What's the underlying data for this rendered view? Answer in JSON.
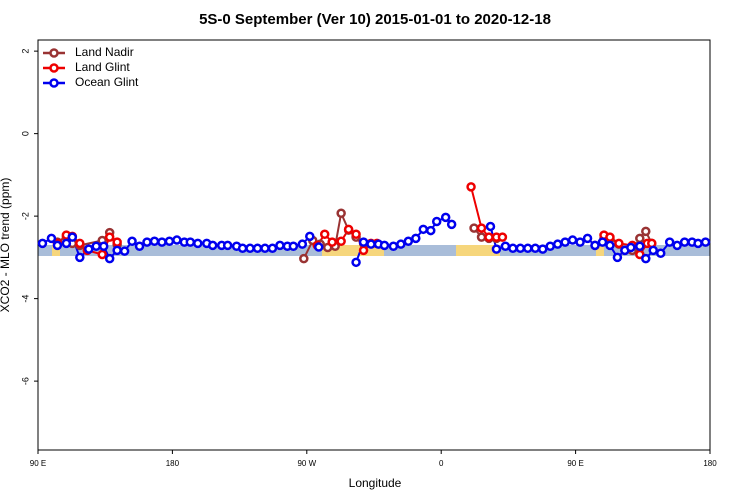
{
  "chart_data": {
    "type": "line",
    "title": "5S-0 September (Ver 10)   2015-01-01 to 2020-12-18",
    "x_label": "Longitude",
    "y_label": "XCO2 - MLO trend (ppm)",
    "xlim": [
      90,
      540
    ],
    "ylim": [
      -7.67,
      2.27
    ],
    "xticks": [
      {
        "value": 90,
        "label": "90 E"
      },
      {
        "value": 180,
        "label": "180"
      },
      {
        "value": 270,
        "label": "90 W"
      },
      {
        "value": 360,
        "label": "0"
      },
      {
        "value": 450,
        "label": "90 E"
      },
      {
        "value": 540,
        "label": "180"
      }
    ],
    "yticks": [
      2,
      0,
      -2,
      -4,
      -6
    ],
    "legend": "top-left",
    "series": [
      {
        "name": "Land Nadir",
        "color": "#993333",
        "x": [
          103,
          109,
          113,
          118,
          133,
          138,
          143,
          null,
          268,
          274,
          279,
          284,
          289,
          293,
          298,
          303,
          308,
          null,
          382,
          387,
          392,
          397,
          null,
          463,
          469,
          473,
          479,
          483,
          488,
          493,
          497,
          501
        ],
        "values": [
          -2.63,
          -2.51,
          -2.66,
          -2.71,
          -2.59,
          -2.4,
          -2.69,
          null,
          -3.03,
          -2.59,
          -2.68,
          -2.76,
          -2.73,
          -1.93,
          -2.34,
          -2.51,
          -2.66,
          null,
          -2.29,
          -2.51,
          -2.54,
          -2.54,
          null,
          -2.71,
          -2.54,
          -2.54,
          -2.68,
          -2.83,
          -2.83,
          -2.54,
          -2.37,
          -2.66
        ]
      },
      {
        "name": "Land Glint",
        "color": "#ee0000",
        "x": [
          103,
          109,
          113,
          118,
          123,
          133,
          138,
          143,
          null,
          277,
          282,
          287,
          293,
          298,
          303,
          308,
          313,
          317,
          null,
          380,
          387,
          392,
          397,
          401,
          null,
          469,
          473,
          479,
          488,
          493,
          498,
          501
        ],
        "values": [
          -2.66,
          -2.46,
          -2.49,
          -2.66,
          -2.83,
          -2.93,
          -2.51,
          -2.63,
          null,
          -2.71,
          -2.44,
          -2.63,
          -2.61,
          -2.32,
          -2.44,
          -2.83,
          -2.66,
          -2.66,
          null,
          -1.29,
          -2.29,
          -2.51,
          -2.51,
          -2.51,
          null,
          -2.46,
          -2.51,
          -2.66,
          -2.71,
          -2.93,
          -2.66,
          -2.66
        ]
      },
      {
        "name": "Ocean Glint",
        "color": "#0000ee",
        "x": [
          93,
          99,
          103,
          109,
          113,
          118,
          124,
          129,
          134,
          138,
          143,
          148,
          153,
          158,
          163,
          168,
          173,
          178,
          183,
          188,
          192,
          197,
          203,
          207,
          213,
          217,
          223,
          227,
          232,
          237,
          242,
          247,
          252,
          257,
          261,
          267,
          272,
          278,
          null,
          303,
          308,
          313,
          318,
          322,
          328,
          333,
          338,
          343,
          348,
          353,
          357,
          363,
          367,
          null,
          393,
          397,
          403,
          408,
          413,
          418,
          423,
          428,
          433,
          438,
          443,
          448,
          453,
          458,
          463,
          468,
          473,
          478,
          483,
          487,
          493,
          497,
          502,
          507,
          513,
          518,
          523,
          528,
          532,
          537
        ],
        "values": [
          -2.66,
          -2.54,
          -2.71,
          -2.66,
          -2.51,
          -3.0,
          -2.8,
          -2.73,
          -2.73,
          -3.03,
          -2.83,
          -2.85,
          -2.61,
          -2.73,
          -2.63,
          -2.61,
          -2.63,
          -2.61,
          -2.58,
          -2.63,
          -2.63,
          -2.66,
          -2.66,
          -2.71,
          -2.71,
          -2.71,
          -2.73,
          -2.78,
          -2.78,
          -2.78,
          -2.78,
          -2.78,
          -2.71,
          -2.73,
          -2.73,
          -2.68,
          -2.49,
          -2.75,
          null,
          -3.12,
          -2.63,
          -2.68,
          -2.68,
          -2.71,
          -2.73,
          -2.68,
          -2.61,
          -2.54,
          -2.32,
          -2.35,
          -2.13,
          -2.03,
          -2.2,
          null,
          -2.25,
          -2.8,
          -2.73,
          -2.78,
          -2.78,
          -2.78,
          -2.78,
          -2.8,
          -2.73,
          -2.68,
          -2.63,
          -2.58,
          -2.63,
          -2.54,
          -2.71,
          -2.63,
          -2.71,
          -3.0,
          -2.83,
          -2.76,
          -2.73,
          -3.03,
          -2.83,
          -2.9,
          -2.63,
          -2.71,
          -2.63,
          -2.63,
          -2.66,
          -2.63
        ]
      }
    ]
  }
}
